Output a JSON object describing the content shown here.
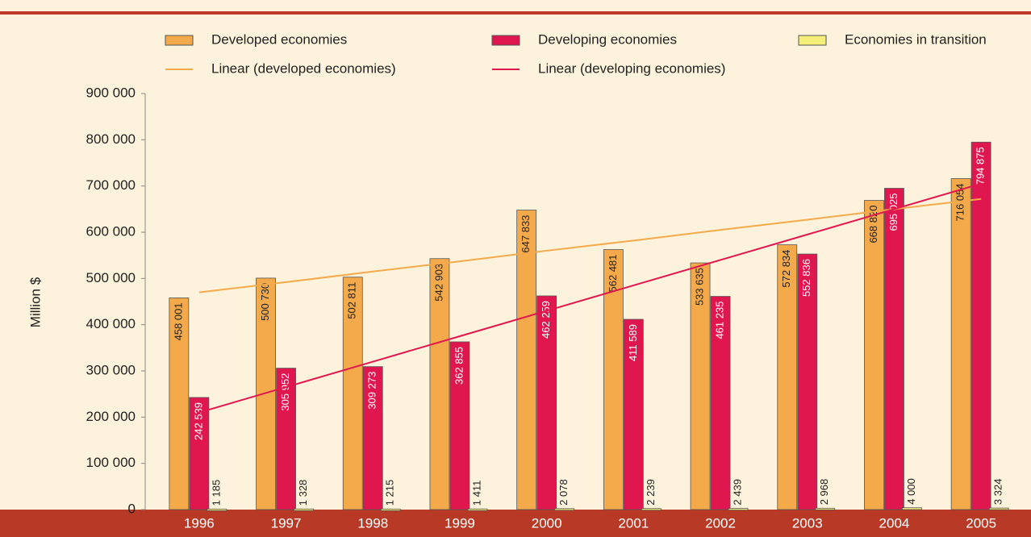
{
  "chart_data": {
    "type": "bar",
    "y_label": "Million $",
    "categories": [
      "1996",
      "1997",
      "1998",
      "1999",
      "2000",
      "2001",
      "2002",
      "2003",
      "2004",
      "2005"
    ],
    "ylim": [
      0,
      900000
    ],
    "yticks": [
      0,
      {
        "value": 100000,
        "label": "100 000"
      },
      {
        "value": 200000,
        "label": "200 000"
      },
      {
        "value": 300000,
        "label": "300 000"
      },
      {
        "value": 400000,
        "label": "400 000"
      },
      {
        "value": 500000,
        "label": "500 000"
      },
      {
        "value": 600000,
        "label": "600 000"
      },
      {
        "value": 700000,
        "label": "700 000"
      },
      {
        "value": 800000,
        "label": "800 000"
      },
      {
        "value": 900000,
        "label": "900 000"
      }
    ],
    "series": [
      {
        "name": "Developed economies",
        "type": "bar",
        "color": "#f4a94a",
        "values": [
          458001,
          500730,
          502811,
          542903,
          647833,
          562481,
          533635,
          572834,
          668820,
          716054
        ],
        "value_labels": [
          "458 001",
          "500 730",
          "502 811",
          "542 903",
          "647 833",
          "562 481",
          "533 635",
          "572 834",
          "668 820",
          "716 054"
        ]
      },
      {
        "name": "Developing economies",
        "type": "bar",
        "color": "#e0174f",
        "values": [
          242539,
          305952,
          309273,
          362855,
          462259,
          411589,
          461235,
          552836,
          695025,
          794875
        ],
        "value_labels": [
          "242 539",
          "305 952",
          "309 273",
          "362 855",
          "462 259",
          "411 589",
          "461 235",
          "552 836",
          "695 025",
          "794 875"
        ]
      },
      {
        "name": "Economies in transition",
        "type": "bar",
        "color": "#f5ee7a",
        "values": [
          1185,
          1328,
          1215,
          1411,
          2078,
          2239,
          2439,
          2968,
          4000,
          3324
        ],
        "value_labels": [
          "1 185",
          "1 328",
          "1 215",
          "1 411",
          "2 078",
          "2 239",
          "2 439",
          "2 968",
          "4 000",
          "3 324"
        ]
      },
      {
        "name": "Linear (developed economies)",
        "type": "line",
        "color": "#f4a94a",
        "values": [
          470000,
          492000,
          515000,
          537000,
          560000,
          582000,
          605000,
          627000,
          650000,
          672000
        ]
      },
      {
        "name": "Linear (developing economies)",
        "type": "line",
        "color": "#e0174f",
        "values": [
          210000,
          265000,
          320000,
          375000,
          430000,
          485000,
          540000,
          595000,
          650000,
          705000
        ]
      }
    ]
  }
}
